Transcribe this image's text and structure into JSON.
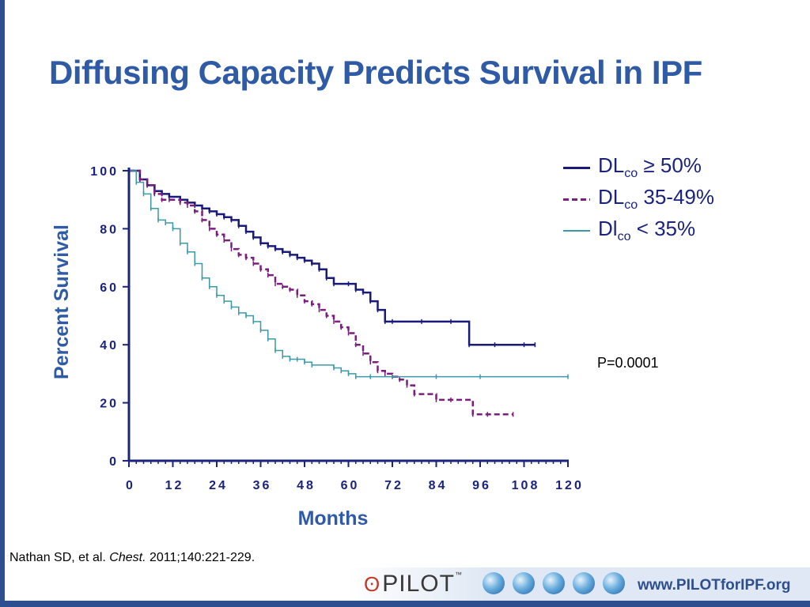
{
  "slide": {
    "title": "Diffusing Capacity Predicts Survival in IPF",
    "p_value": "P=0.0001",
    "citation_prefix": "Nathan SD, et al. ",
    "citation_journal": "Chest.",
    "citation_suffix": " 2011;140:221-229."
  },
  "legend": [
    {
      "main": "DL",
      "sub": "co",
      "rest": " ≥ 50%",
      "color": "#1a1a7a",
      "dash": "solid"
    },
    {
      "main": "DL",
      "sub": "co",
      "rest": " 35-49%",
      "color": "#7b1f7e",
      "dash": "dashed"
    },
    {
      "main": "Dl",
      "sub": "co",
      "rest": " < 35%",
      "color": "#3a9aa6",
      "dash": "solid"
    }
  ],
  "footer": {
    "logo_text": "PILOT",
    "logo_tm": "™",
    "url": "www.PILOTforIPF.org",
    "colors": {
      "frame": "#2e4f8f",
      "title": "#2e5aa6",
      "axis": "#1a237e"
    }
  },
  "chart_data": {
    "type": "line",
    "xlabel": "Months",
    "ylabel": "Percent Survival",
    "xlim": [
      0,
      120
    ],
    "ylim": [
      0,
      100
    ],
    "xticks": [
      0,
      12,
      24,
      36,
      48,
      60,
      72,
      84,
      96,
      108,
      120
    ],
    "yticks": [
      0,
      20,
      40,
      60,
      80,
      100
    ],
    "xtick_labels": [
      "0",
      "12",
      "24",
      "36",
      "48",
      "60",
      "72",
      "84",
      "96",
      "108",
      "120"
    ],
    "ytick_labels": [
      "0",
      "20",
      "40",
      "60",
      "80",
      "100"
    ],
    "series": [
      {
        "name": "DLco ≥ 50%",
        "color": "#1a1a7a",
        "dash": "solid",
        "x": [
          0,
          3,
          5,
          7,
          9,
          11,
          14,
          16,
          18,
          20,
          22,
          24,
          26,
          28,
          30,
          32,
          34,
          36,
          38,
          40,
          42,
          44,
          46,
          48,
          50,
          52,
          54,
          56,
          60,
          62,
          64,
          66,
          68,
          70,
          72,
          80,
          88,
          93,
          100,
          108,
          111
        ],
        "y": [
          100,
          97,
          95,
          93,
          92,
          91,
          90,
          89,
          88,
          87,
          86,
          85,
          84,
          83,
          81,
          79,
          77,
          75,
          74,
          73,
          72,
          71,
          70,
          69,
          68,
          66,
          63,
          61,
          61,
          59,
          58,
          55,
          52,
          48,
          48,
          48,
          48,
          40,
          40,
          40,
          40
        ]
      },
      {
        "name": "DLco 35-49%",
        "color": "#7b1f7e",
        "dash": "dashed",
        "x": [
          0,
          3,
          5,
          7,
          9,
          11,
          14,
          16,
          18,
          20,
          22,
          24,
          26,
          28,
          30,
          32,
          34,
          36,
          38,
          40,
          42,
          44,
          46,
          48,
          50,
          52,
          54,
          56,
          58,
          60,
          62,
          64,
          66,
          68,
          70,
          72,
          74,
          76,
          78,
          84,
          88,
          94,
          98,
          105
        ],
        "y": [
          100,
          97,
          95,
          92,
          90,
          90,
          89,
          88,
          86,
          83,
          80,
          78,
          76,
          73,
          71,
          70,
          68,
          66,
          64,
          61,
          60,
          59,
          57,
          55,
          54,
          52,
          50,
          48,
          46,
          44,
          40,
          37,
          34,
          31,
          30,
          29,
          28,
          26,
          23,
          21,
          21,
          16,
          16,
          16
        ]
      },
      {
        "name": "Dlco < 35%",
        "color": "#3a9aa6",
        "dash": "solid",
        "x": [
          0,
          2,
          4,
          6,
          8,
          10,
          12,
          14,
          16,
          18,
          20,
          22,
          24,
          26,
          28,
          30,
          32,
          34,
          36,
          38,
          40,
          42,
          44,
          46,
          48,
          50,
          56,
          58,
          60,
          62,
          66,
          72,
          84,
          96,
          120
        ],
        "y": [
          100,
          96,
          92,
          87,
          83,
          82,
          80,
          75,
          72,
          68,
          63,
          60,
          57,
          55,
          53,
          51,
          50,
          48,
          45,
          42,
          38,
          36,
          35,
          35,
          34,
          33,
          32,
          31,
          30,
          29,
          29,
          29,
          29,
          29,
          29
        ]
      }
    ]
  }
}
